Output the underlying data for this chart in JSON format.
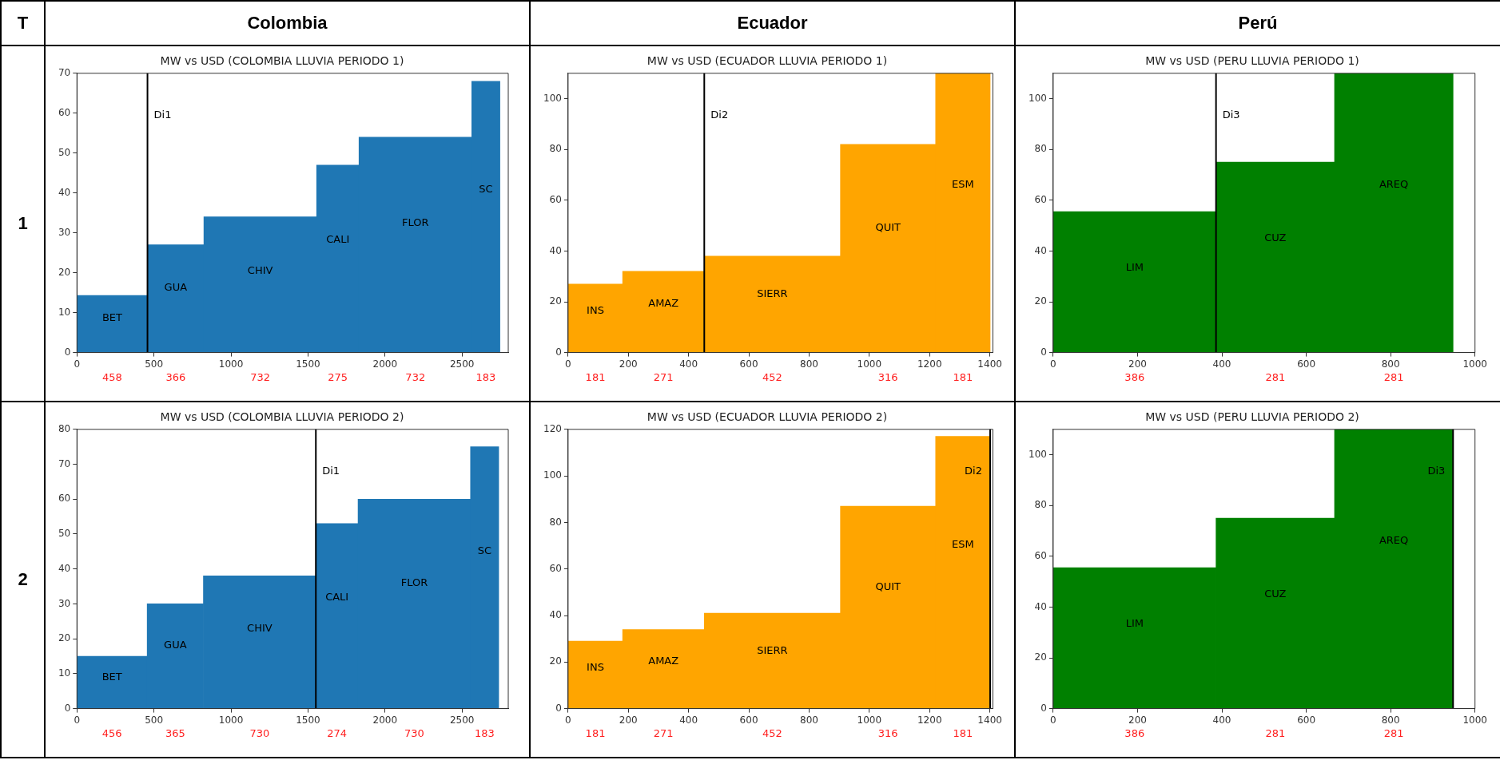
{
  "chart_data": [
    {
      "type": "other",
      "annotations": [
        "T",
        "Colombia",
        "Ecuador",
        "Perú",
        "1",
        "2"
      ]
    },
    {
      "type": "histogram",
      "title": "MW vs USD (COLOMBIA LLUVIA PERIODO 1)",
      "bins": [
        0,
        458,
        824,
        1556,
        1831,
        2563,
        2746
      ],
      "values": [
        14.3,
        27,
        34,
        47,
        54,
        68
      ],
      "color": "#1f77b4",
      "xlim": [
        0,
        2800
      ],
      "xticks": [
        0,
        500,
        1000,
        1500,
        2000,
        2500
      ],
      "ylim": [
        0,
        70
      ],
      "yticks": [
        0,
        10,
        20,
        30,
        40,
        50,
        60,
        70
      ],
      "ref_lines": [
        {
          "axis": "x",
          "value": 458,
          "label": "Di1",
          "color": "#000000"
        }
      ],
      "annotations": [
        "BET",
        "GUA",
        "CHIV",
        "CALI",
        "FLOR",
        "SC",
        "458",
        "366",
        "732",
        "275",
        "732",
        "183"
      ]
    },
    {
      "type": "histogram",
      "title": "MW vs USD (ECUADOR LLUVIA PERIODO 1)",
      "bins": [
        0,
        181,
        452,
        904,
        1220,
        1401
      ],
      "values": [
        27,
        32,
        38,
        82,
        110
      ],
      "color": "#ffa500",
      "xlim": [
        0,
        1410
      ],
      "xticks": [
        0,
        200,
        400,
        600,
        800,
        1000,
        1200,
        1400
      ],
      "ylim": [
        0,
        110
      ],
      "yticks": [
        0,
        20,
        40,
        60,
        80,
        100
      ],
      "ref_lines": [
        {
          "axis": "x",
          "value": 452,
          "label": "Di2",
          "color": "#000000"
        }
      ],
      "annotations": [
        "INS",
        "AMAZ",
        "SIERR",
        "QUIT",
        "ESM",
        "181",
        "271",
        "452",
        "316",
        "181"
      ]
    },
    {
      "type": "histogram",
      "title": "MW vs USD (PERU LLUVIA PERIODO 1)",
      "bins": [
        0,
        386,
        667,
        948
      ],
      "values": [
        55.5,
        75,
        110
      ],
      "color": "#008000",
      "xlim": [
        0,
        1000
      ],
      "xticks": [
        0,
        200,
        400,
        600,
        800,
        1000
      ],
      "ylim": [
        0,
        110
      ],
      "yticks": [
        0,
        20,
        40,
        60,
        80,
        100
      ],
      "ref_lines": [
        {
          "axis": "x",
          "value": 386,
          "label": "Di3",
          "color": "#000000"
        }
      ],
      "annotations": [
        "LIM",
        "CUZ",
        "AREQ",
        "386",
        "281",
        "281"
      ]
    },
    {
      "type": "histogram",
      "title": "MW vs USD (COLOMBIA LLUVIA PERIODO 2)",
      "bins": [
        0,
        456,
        821,
        1551,
        1825,
        2555,
        2738
      ],
      "values": [
        15,
        30,
        38,
        53,
        60,
        75
      ],
      "color": "#1f77b4",
      "xlim": [
        0,
        2800
      ],
      "xticks": [
        0,
        500,
        1000,
        1500,
        2000,
        2500
      ],
      "ylim": [
        0,
        80
      ],
      "yticks": [
        0,
        10,
        20,
        30,
        40,
        50,
        60,
        70,
        80
      ],
      "ref_lines": [
        {
          "axis": "x",
          "value": 1551,
          "label": "Di1",
          "color": "#000000"
        }
      ],
      "annotations": [
        "BET",
        "GUA",
        "CHIV",
        "CALI",
        "FLOR",
        "SC",
        "456",
        "365",
        "730",
        "274",
        "730",
        "183"
      ]
    },
    {
      "type": "histogram",
      "title": "MW vs USD (ECUADOR LLUVIA PERIODO 2)",
      "bins": [
        0,
        181,
        452,
        904,
        1220,
        1401
      ],
      "values": [
        29,
        34,
        41,
        87,
        117
      ],
      "color": "#ffa500",
      "xlim": [
        0,
        1410
      ],
      "xticks": [
        0,
        200,
        400,
        600,
        800,
        1000,
        1200,
        1400
      ],
      "ylim": [
        0,
        120
      ],
      "yticks": [
        0,
        20,
        40,
        60,
        80,
        100,
        120
      ],
      "ref_lines": [
        {
          "axis": "x",
          "value": 1401,
          "label": "Di2",
          "color": "#000000"
        }
      ],
      "annotations": [
        "INS",
        "AMAZ",
        "SIERR",
        "QUIT",
        "ESM",
        "181",
        "271",
        "452",
        "316",
        "181"
      ]
    },
    {
      "type": "histogram",
      "title": "MW vs USD (PERU LLUVIA PERIODO 2)",
      "bins": [
        0,
        386,
        667,
        948
      ],
      "values": [
        55.5,
        75,
        110
      ],
      "color": "#008000",
      "xlim": [
        0,
        1000
      ],
      "xticks": [
        0,
        200,
        400,
        600,
        800,
        1000
      ],
      "ylim": [
        0,
        110
      ],
      "yticks": [
        0,
        20,
        40,
        60,
        80,
        100
      ],
      "ref_lines": [
        {
          "axis": "x",
          "value": 948,
          "label": "Di3",
          "color": "#000000"
        }
      ],
      "annotations": [
        "LIM",
        "CUZ",
        "AREQ",
        "386",
        "281",
        "281"
      ]
    }
  ]
}
